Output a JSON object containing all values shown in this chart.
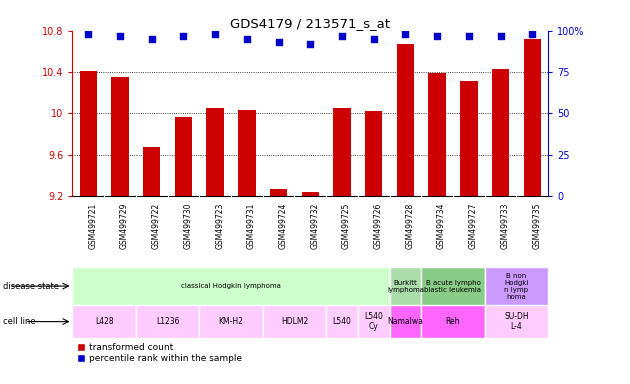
{
  "title": "GDS4179 / 213571_s_at",
  "samples": [
    "GSM499721",
    "GSM499729",
    "GSM499722",
    "GSM499730",
    "GSM499723",
    "GSM499731",
    "GSM499724",
    "GSM499732",
    "GSM499725",
    "GSM499726",
    "GSM499728",
    "GSM499734",
    "GSM499727",
    "GSM499733",
    "GSM499735"
  ],
  "bar_values": [
    10.41,
    10.35,
    9.67,
    9.96,
    10.05,
    10.03,
    9.27,
    9.24,
    10.05,
    10.02,
    10.67,
    10.39,
    10.31,
    10.43,
    10.72
  ],
  "percentile_values": [
    98,
    97,
    95,
    97,
    98,
    95,
    93,
    92,
    97,
    95,
    98,
    97,
    97,
    97,
    98
  ],
  "ylim": [
    9.2,
    10.8
  ],
  "yticks_left": [
    9.2,
    9.6,
    10.0,
    10.4,
    10.8
  ],
  "ytick_labels_left": [
    "9.2",
    "9.6",
    "10",
    "10.4",
    "10.8"
  ],
  "right_yticks": [
    0,
    25,
    50,
    75,
    100
  ],
  "right_ytick_labels": [
    "0",
    "25",
    "50",
    "75",
    "100%"
  ],
  "bar_color": "#cc0000",
  "percentile_color": "#0000cc",
  "bg_color": "#ffffff",
  "tick_area_bg": "#cccccc",
  "disease_map": [
    [
      "classical Hodgkin lymphoma",
      0,
      10,
      "#ccffcc"
    ],
    [
      "Burkitt\nlymphoma",
      10,
      11,
      "#aaddaa"
    ],
    [
      "B acute lympho\nblastic leukemia",
      11,
      13,
      "#88cc88"
    ],
    [
      "B non\nHodgki\nn lymp\nhoma",
      13,
      15,
      "#cc99ff"
    ]
  ],
  "cell_map": [
    [
      "L428",
      0,
      2,
      "#ffccff"
    ],
    [
      "L1236",
      2,
      4,
      "#ffccff"
    ],
    [
      "KM-H2",
      4,
      6,
      "#ffccff"
    ],
    [
      "HDLM2",
      6,
      8,
      "#ffccff"
    ],
    [
      "L540",
      8,
      9,
      "#ffccff"
    ],
    [
      "L540\nCy",
      9,
      10,
      "#ffccff"
    ],
    [
      "Namalwa",
      10,
      11,
      "#ff66ff"
    ],
    [
      "Reh",
      11,
      13,
      "#ff66ff"
    ],
    [
      "SU-DH\nL-4",
      13,
      15,
      "#ffccff"
    ]
  ],
  "legend_items": [
    "transformed count",
    "percentile rank within the sample"
  ],
  "legend_colors": [
    "#cc0000",
    "#0000cc"
  ]
}
